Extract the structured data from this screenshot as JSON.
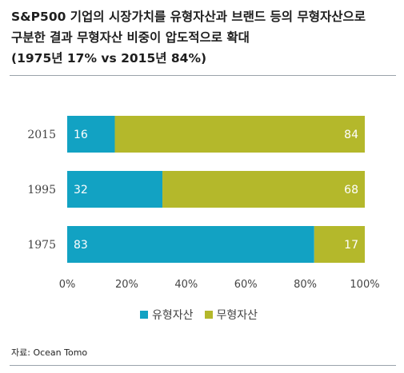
{
  "title": {
    "lines": [
      "S&P500 기업의 시장가치를 유형자산과 브랜드 등의 무형자산으로",
      "구분한 결과 무형자산 비중이 압도적으로 확대",
      "(1975년 17% vs 2015년 84%)"
    ]
  },
  "source": "자료: Ocean Tomo",
  "colors": {
    "tangible": "#12a2c3",
    "intangible": "#b4b82b",
    "label_text": "#ffffff",
    "axis_text": "#444444"
  },
  "chart_data": {
    "type": "bar",
    "orientation": "horizontal",
    "stacked": true,
    "percent": true,
    "categories": [
      "2015",
      "1995",
      "1975"
    ],
    "series": [
      {
        "name": "유형자산",
        "values": [
          16,
          32,
          83
        ]
      },
      {
        "name": "무형자산",
        "values": [
          84,
          68,
          17
        ]
      }
    ],
    "xlim": [
      0,
      100
    ],
    "xticks": [
      "0%",
      "20%",
      "40%",
      "60%",
      "80%",
      "100%"
    ],
    "legend_position": "bottom",
    "grid": false,
    "title": "",
    "xlabel": "",
    "ylabel": ""
  }
}
